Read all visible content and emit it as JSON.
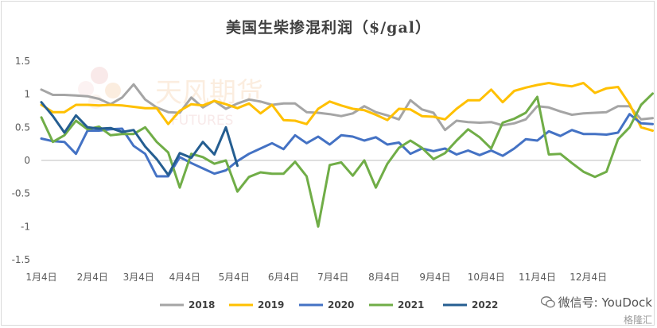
{
  "chart_title": "美国生柴掺混利润（$/gal）",
  "watermark": {
    "brand_cn": "天风期货",
    "brand_en": "FUTURES"
  },
  "badge": {
    "wechat_label": "微信号: YouDock",
    "platform_label": "格隆汇"
  },
  "colors": {
    "2018": "#a5a5a5",
    "2019": "#ffc000",
    "2020": "#4472c4",
    "2021": "#70ad47",
    "2022": "#255e91"
  },
  "chart_data": {
    "type": "line",
    "title": "美国生柴掺混利润（$/gal）",
    "xlabel": "",
    "ylabel": "",
    "ylim": [
      -1.5,
      1.5
    ],
    "yticks": [
      1.5,
      1,
      0.5,
      0,
      -0.5,
      -1,
      -1.5
    ],
    "ytick_labels": [
      "1.5",
      "1",
      "0.5",
      "0",
      "-0.5",
      "-1",
      "-1.5"
    ],
    "xlim": [
      1,
      53
    ],
    "xticks": [
      1,
      5.43,
      9.43,
      13.43,
      17.71,
      22,
      26.29,
      30.71,
      35.14,
      39.57,
      44,
      48.43
    ],
    "xtick_labels": [
      "1月4日",
      "2月4日",
      "3月4日",
      "4月4日",
      "5月4日",
      "6月4日",
      "7月4日",
      "8月4日",
      "9月4日",
      "10月4日",
      "11月4日",
      "12月4日"
    ],
    "grid": "none",
    "legend_position": "bottom",
    "series": [
      {
        "name": "2018",
        "values": [
          1.07,
          0.99,
          0.99,
          0.98,
          0.97,
          0.93,
          0.85,
          0.95,
          1.15,
          0.92,
          0.8,
          0.73,
          0.72,
          0.95,
          0.8,
          0.9,
          0.78,
          0.86,
          0.92,
          0.89,
          0.84,
          0.86,
          0.86,
          0.73,
          0.72,
          0.7,
          0.67,
          0.71,
          0.82,
          0.73,
          0.68,
          0.62,
          0.91,
          0.77,
          0.72,
          0.46,
          0.6,
          0.58,
          0.57,
          0.58,
          0.53,
          0.56,
          0.62,
          0.82,
          0.8,
          0.74,
          0.69,
          0.71,
          0.72,
          0.73,
          0.82,
          0.82,
          0.62,
          0.64
        ]
      },
      {
        "name": "2019",
        "values": [
          0.84,
          0.73,
          0.73,
          0.84,
          0.84,
          0.83,
          0.84,
          0.83,
          0.81,
          0.79,
          0.79,
          0.55,
          0.75,
          0.85,
          0.83,
          0.9,
          0.85,
          0.79,
          0.86,
          0.71,
          0.84,
          0.61,
          0.6,
          0.55,
          0.78,
          0.89,
          0.83,
          0.78,
          0.76,
          0.69,
          0.61,
          0.78,
          0.77,
          0.67,
          0.66,
          0.62,
          0.78,
          0.91,
          0.91,
          1.07,
          0.88,
          1.05,
          1.1,
          1.14,
          1.17,
          1.14,
          1.12,
          1.17,
          1.02,
          1.09,
          1.11,
          0.85,
          0.5,
          0.45
        ]
      },
      {
        "name": "2020",
        "values": [
          0.33,
          0.29,
          0.28,
          0.1,
          0.45,
          0.45,
          0.47,
          0.48,
          0.22,
          0.1,
          -0.24,
          -0.24,
          0.05,
          -0.04,
          -0.12,
          -0.2,
          -0.15,
          -0.01,
          0.1,
          0.18,
          0.26,
          0.17,
          0.38,
          0.26,
          0.36,
          0.24,
          0.38,
          0.36,
          0.3,
          0.35,
          0.24,
          0.27,
          0.1,
          0.18,
          0.14,
          0.18,
          0.09,
          0.15,
          0.08,
          0.15,
          0.07,
          0.18,
          0.32,
          0.3,
          0.44,
          0.37,
          0.46,
          0.4,
          0.4,
          0.39,
          0.42,
          0.7,
          0.56,
          0.55
        ]
      },
      {
        "name": "2021",
        "values": [
          0.65,
          0.28,
          0.38,
          0.6,
          0.47,
          0.51,
          0.38,
          0.4,
          0.4,
          0.5,
          0.28,
          0.12,
          -0.41,
          0.1,
          0.05,
          -0.05,
          0.0,
          -0.47,
          -0.25,
          -0.18,
          -0.2,
          -0.2,
          -0.02,
          -0.24,
          -1.0,
          -0.07,
          -0.03,
          -0.23,
          0.0,
          -0.41,
          -0.05,
          0.19,
          0.3,
          0.19,
          0.02,
          0.11,
          0.3,
          0.47,
          0.35,
          0.18,
          0.57,
          0.63,
          0.72,
          0.96,
          0.09,
          0.1,
          -0.04,
          -0.17,
          -0.25,
          -0.17,
          0.32,
          0.5,
          0.84,
          1.01
        ]
      },
      {
        "name": "2022",
        "values": [
          0.88,
          0.67,
          0.42,
          0.68,
          0.5,
          0.48,
          0.49,
          0.43,
          0.46,
          0.21,
          0.02,
          -0.22,
          0.11,
          0.04,
          0.28,
          0.09,
          0.5,
          -0.08
        ]
      }
    ]
  }
}
